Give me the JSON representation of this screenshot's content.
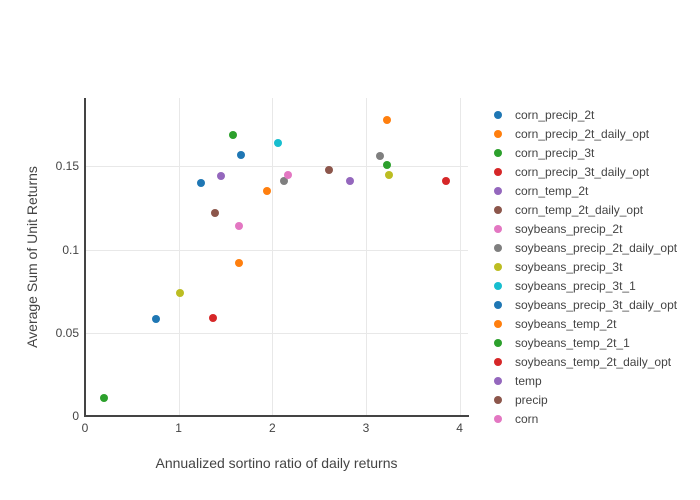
{
  "chart_data": {
    "type": "scatter",
    "title": "",
    "xlabel": "Annualized sortino ratio of daily returns",
    "ylabel": "Average Sum of Unit Returns",
    "xlim": [
      0,
      4.09
    ],
    "ylim": [
      0,
      0.191
    ],
    "xticks": [
      {
        "value": 0,
        "label": "0"
      },
      {
        "value": 1,
        "label": "1"
      },
      {
        "value": 2,
        "label": "2"
      },
      {
        "value": 3,
        "label": "3"
      },
      {
        "value": 4,
        "label": "4"
      }
    ],
    "yticks": [
      {
        "value": 0,
        "label": "0"
      },
      {
        "value": 0.05,
        "label": "0.05"
      },
      {
        "value": 0.1,
        "label": "0.1"
      },
      {
        "value": 0.15,
        "label": "0.15"
      }
    ],
    "grid": true,
    "legend_position": "right",
    "legend_clipped": true,
    "marker_size": 8,
    "style": {
      "background": "#ffffff",
      "axis_line_color": "#444444",
      "grid_color": "#e8e8e8",
      "text_color": "#444444"
    },
    "series": [
      {
        "name": "corn_precip_2t",
        "color": "#1f77b4",
        "in_legend": true,
        "points": [
          [
            1.24,
            0.14
          ]
        ]
      },
      {
        "name": "corn_precip_2t_daily_opt",
        "color": "#ff7f0e",
        "in_legend": true,
        "points": [
          [
            1.64,
            0.092
          ]
        ]
      },
      {
        "name": "corn_precip_3t",
        "color": "#2ca02c",
        "in_legend": true,
        "points": [
          [
            1.58,
            0.169
          ]
        ]
      },
      {
        "name": "corn_precip_3t_daily_opt",
        "color": "#d62728",
        "in_legend": true,
        "points": [
          [
            1.37,
            0.059
          ]
        ]
      },
      {
        "name": "corn_temp_2t",
        "color": "#9467bd",
        "in_legend": true,
        "points": [
          [
            1.45,
            0.144
          ]
        ]
      },
      {
        "name": "corn_temp_2t_daily_opt",
        "color": "#8c564b",
        "in_legend": true,
        "points": [
          [
            1.39,
            0.122
          ]
        ]
      },
      {
        "name": "soybeans_precip_2t",
        "color": "#e377c2",
        "in_legend": true,
        "points": [
          [
            1.64,
            0.114
          ]
        ]
      },
      {
        "name": "soybeans_precip_2t_daily_opt",
        "color": "#7f7f7f",
        "in_legend": true,
        "points": [
          [
            2.12,
            0.141
          ]
        ]
      },
      {
        "name": "soybeans_precip_3t",
        "color": "#bcbd22",
        "in_legend": true,
        "points": [
          [
            1.01,
            0.074
          ]
        ]
      },
      {
        "name": "soybeans_precip_3t_1",
        "color": "#17becf",
        "in_legend": true,
        "points": [
          [
            2.06,
            0.164
          ]
        ]
      },
      {
        "name": "soybeans_precip_3t_daily_opt",
        "color": "#1f77b4",
        "in_legend": true,
        "points": [
          [
            1.67,
            0.157
          ]
        ]
      },
      {
        "name": "soybeans_temp_2t",
        "color": "#ff7f0e",
        "in_legend": true,
        "points": [
          [
            1.94,
            0.135
          ]
        ]
      },
      {
        "name": "soybeans_temp_2t_1",
        "color": "#2ca02c",
        "in_legend": true,
        "points": [
          [
            3.22,
            0.151
          ]
        ]
      },
      {
        "name": "soybeans_temp_2t_daily_opt",
        "color": "#d62728",
        "in_legend": true,
        "points": [
          [
            3.85,
            0.141
          ]
        ]
      },
      {
        "name": "temp",
        "color": "#9467bd",
        "in_legend": true,
        "points": [
          [
            2.83,
            0.141
          ]
        ]
      },
      {
        "name": "precip",
        "color": "#8c564b",
        "in_legend": true,
        "points": [
          [
            2.61,
            0.148
          ]
        ]
      },
      {
        "name": "corn",
        "color": "#e377c2",
        "in_legend": true,
        "points": [
          [
            2.17,
            0.145
          ]
        ]
      },
      {
        "name": "",
        "color": "#ff7f0e",
        "in_legend": false,
        "points": [
          [
            3.23,
            0.178
          ]
        ]
      },
      {
        "name": "",
        "color": "#7f7f7f",
        "in_legend": false,
        "points": [
          [
            3.15,
            0.156
          ]
        ]
      },
      {
        "name": "",
        "color": "#bcbd22",
        "in_legend": false,
        "points": [
          [
            3.25,
            0.145
          ]
        ]
      },
      {
        "name": "",
        "color": "#1f77b4",
        "in_legend": false,
        "points": [
          [
            0.76,
            0.058
          ]
        ]
      },
      {
        "name": "",
        "color": "#2ca02c",
        "in_legend": false,
        "points": [
          [
            0.2,
            0.011
          ]
        ]
      }
    ]
  }
}
